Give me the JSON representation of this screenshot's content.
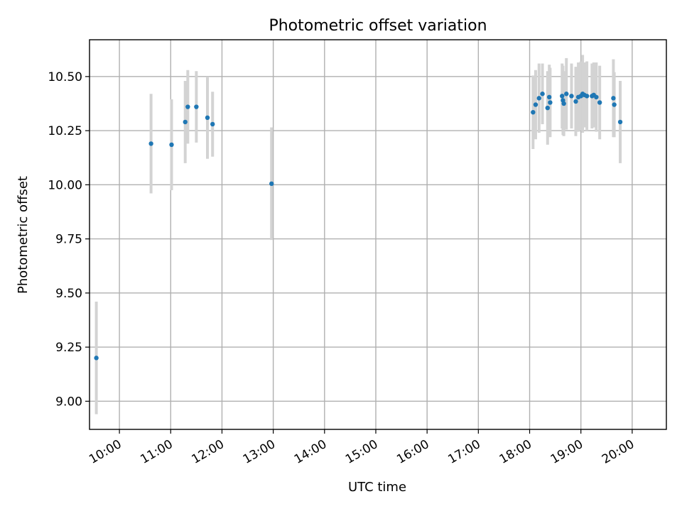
{
  "chart_data": {
    "type": "scatter",
    "title": "Photometric offset variation",
    "xlabel": "UTC time",
    "ylabel": "Photometric offset",
    "x_unit": "hour-of-day (UTC)",
    "xlim": [
      "09:25",
      "20:40"
    ],
    "ylim": [
      8.87,
      10.67
    ],
    "x_ticks": [
      "10:00",
      "11:00",
      "12:00",
      "13:00",
      "14:00",
      "15:00",
      "16:00",
      "17:00",
      "18:00",
      "19:00",
      "20:00"
    ],
    "y_ticks": [
      "9.00",
      "9.25",
      "9.50",
      "9.75",
      "10.00",
      "10.25",
      "10.50"
    ],
    "grid": true,
    "x_tick_rotation": "30deg",
    "series": [
      {
        "marker_color": "#1f77b4",
        "errorbar_color": "#d3d3d3",
        "points": [
          {
            "x": "09:33",
            "y": 9.2,
            "err": 0.26
          },
          {
            "x": "10:37",
            "y": 10.19,
            "err": 0.23
          },
          {
            "x": "11:01",
            "y": 10.185,
            "err": 0.21
          },
          {
            "x": "11:17",
            "y": 10.29,
            "err": 0.19
          },
          {
            "x": "11:20",
            "y": 10.36,
            "err": 0.17
          },
          {
            "x": "11:30",
            "y": 10.36,
            "err": 0.165
          },
          {
            "x": "11:43",
            "y": 10.31,
            "err": 0.19
          },
          {
            "x": "11:49",
            "y": 10.28,
            "err": 0.15
          },
          {
            "x": "12:58",
            "y": 10.005,
            "err": 0.26
          },
          {
            "x": "18:04",
            "y": 10.335,
            "err": 0.17
          },
          {
            "x": "18:07",
            "y": 10.37,
            "err": 0.16
          },
          {
            "x": "18:11",
            "y": 10.4,
            "err": 0.16
          },
          {
            "x": "18:15",
            "y": 10.42,
            "err": 0.14
          },
          {
            "x": "18:21",
            "y": 10.355,
            "err": 0.17
          },
          {
            "x": "18:23",
            "y": 10.405,
            "err": 0.15
          },
          {
            "x": "18:24",
            "y": 10.38,
            "err": 0.16
          },
          {
            "x": "18:38",
            "y": 10.41,
            "err": 0.15
          },
          {
            "x": "18:39",
            "y": 10.39,
            "err": 0.16
          },
          {
            "x": "18:40",
            "y": 10.375,
            "err": 0.15
          },
          {
            "x": "18:43",
            "y": 10.42,
            "err": 0.165
          },
          {
            "x": "18:49",
            "y": 10.41,
            "err": 0.15
          },
          {
            "x": "18:54",
            "y": 10.385,
            "err": 0.16
          },
          {
            "x": "18:57",
            "y": 10.405,
            "err": 0.16
          },
          {
            "x": "19:00",
            "y": 10.41,
            "err": 0.16
          },
          {
            "x": "19:02",
            "y": 10.42,
            "err": 0.18
          },
          {
            "x": "19:04",
            "y": 10.415,
            "err": 0.15
          },
          {
            "x": "19:07",
            "y": 10.41,
            "err": 0.16
          },
          {
            "x": "19:13",
            "y": 10.41,
            "err": 0.15
          },
          {
            "x": "19:15",
            "y": 10.415,
            "err": 0.15
          },
          {
            "x": "19:18",
            "y": 10.405,
            "err": 0.16
          },
          {
            "x": "19:22",
            "y": 10.38,
            "err": 0.17
          },
          {
            "x": "19:38",
            "y": 10.4,
            "err": 0.18
          },
          {
            "x": "19:39",
            "y": 10.37,
            "err": 0.15
          },
          {
            "x": "19:46",
            "y": 10.29,
            "err": 0.19
          }
        ]
      }
    ]
  }
}
